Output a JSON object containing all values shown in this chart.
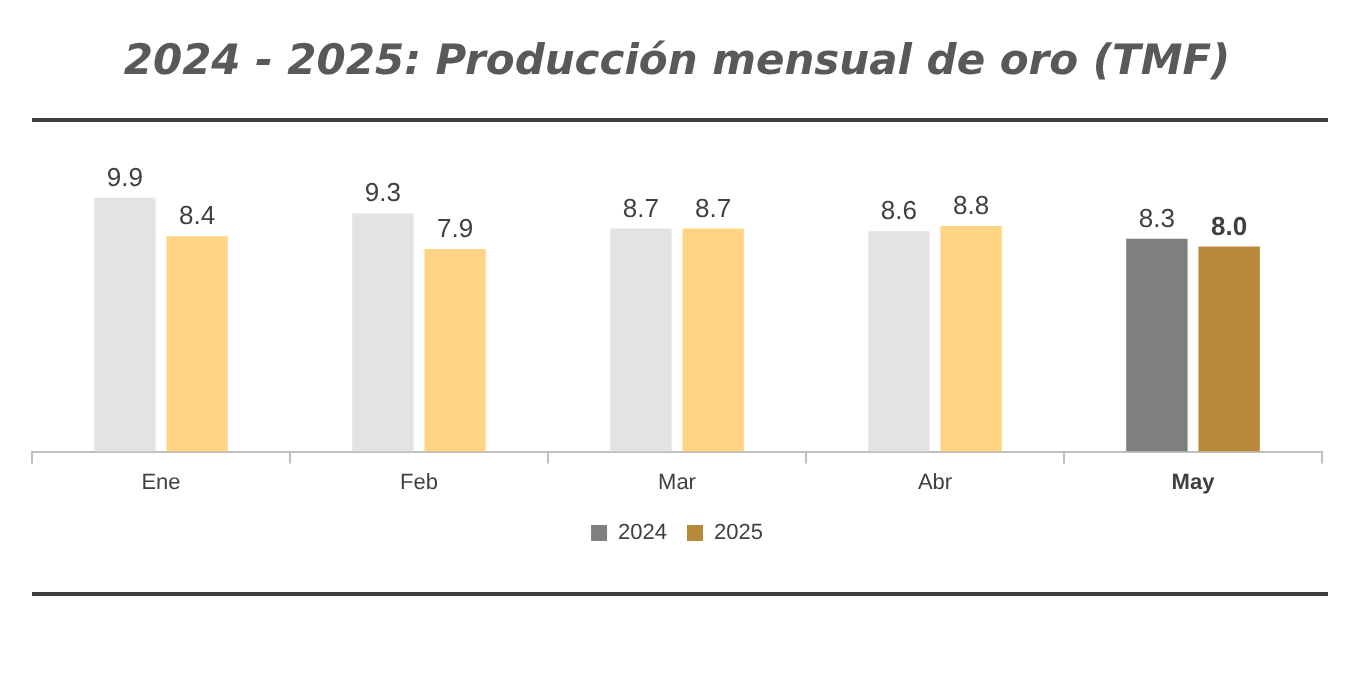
{
  "chart_data": {
    "type": "bar",
    "title": "2024 - 2025: Producción mensual de oro  (TMF)",
    "categories": [
      "Ene",
      "Feb",
      "Mar",
      "Abr",
      "May"
    ],
    "series": [
      {
        "name": "2024",
        "color": "#7f7f7f",
        "colors": [
          "#e3e3e3",
          "#e3e3e3",
          "#e3e3e3",
          "#e3e3e3",
          "#7f7f7f"
        ],
        "values": [
          9.9,
          9.3,
          8.7,
          8.6,
          8.3
        ],
        "value_labels": [
          "9.9",
          "9.3",
          "8.7",
          "8.6",
          "8.3"
        ]
      },
      {
        "name": "2025",
        "color": "#b8893a",
        "colors": [
          "#ffd585",
          "#ffd585",
          "#ffd585",
          "#ffd585",
          "#b8893a"
        ],
        "values": [
          8.4,
          7.9,
          8.7,
          8.8,
          8.0
        ],
        "value_labels": [
          "8.4",
          "7.9",
          "8.7",
          "8.8",
          "8.0"
        ]
      }
    ],
    "grid": false,
    "legend": "bottom",
    "tick_labels": "x"
  }
}
